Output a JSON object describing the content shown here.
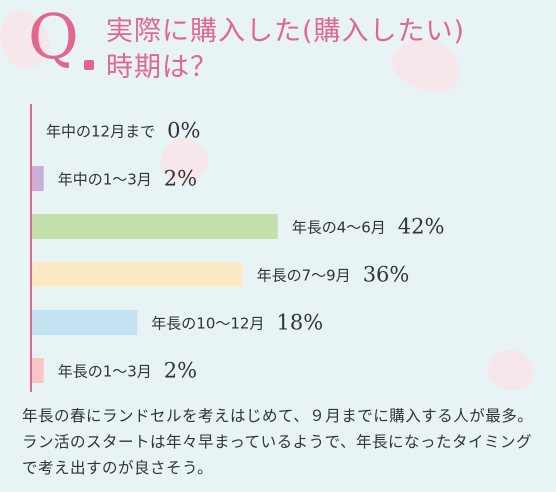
{
  "header": {
    "q_mark": "Q",
    "title_line1": "実際に購入した(購入したい)",
    "title_line2": "時期は？"
  },
  "chart_data": {
    "type": "bar",
    "orientation": "horizontal",
    "categories": [
      "年中の12月まで",
      "年中の1～3月",
      "年長の4～6月",
      "年長の7～9月",
      "年長の10～12月",
      "年長の1～3月"
    ],
    "values": [
      0,
      2,
      42,
      36,
      18,
      2
    ],
    "value_labels": [
      "0%",
      "2%",
      "42%",
      "36%",
      "18%",
      "2%"
    ],
    "colors": [
      "#f4d7de",
      "#c9aed6",
      "#c4dfa9",
      "#fde9c3",
      "#c4e3f3",
      "#f7c7c4"
    ],
    "xlim": [
      0,
      100
    ]
  },
  "caption": "年長の春にランドセルを考えはじめて、９月までに購入する人が最多。ラン活のスタートは年々早まっているようで、年長になったタイミングで考え出すのが良さそう。"
}
